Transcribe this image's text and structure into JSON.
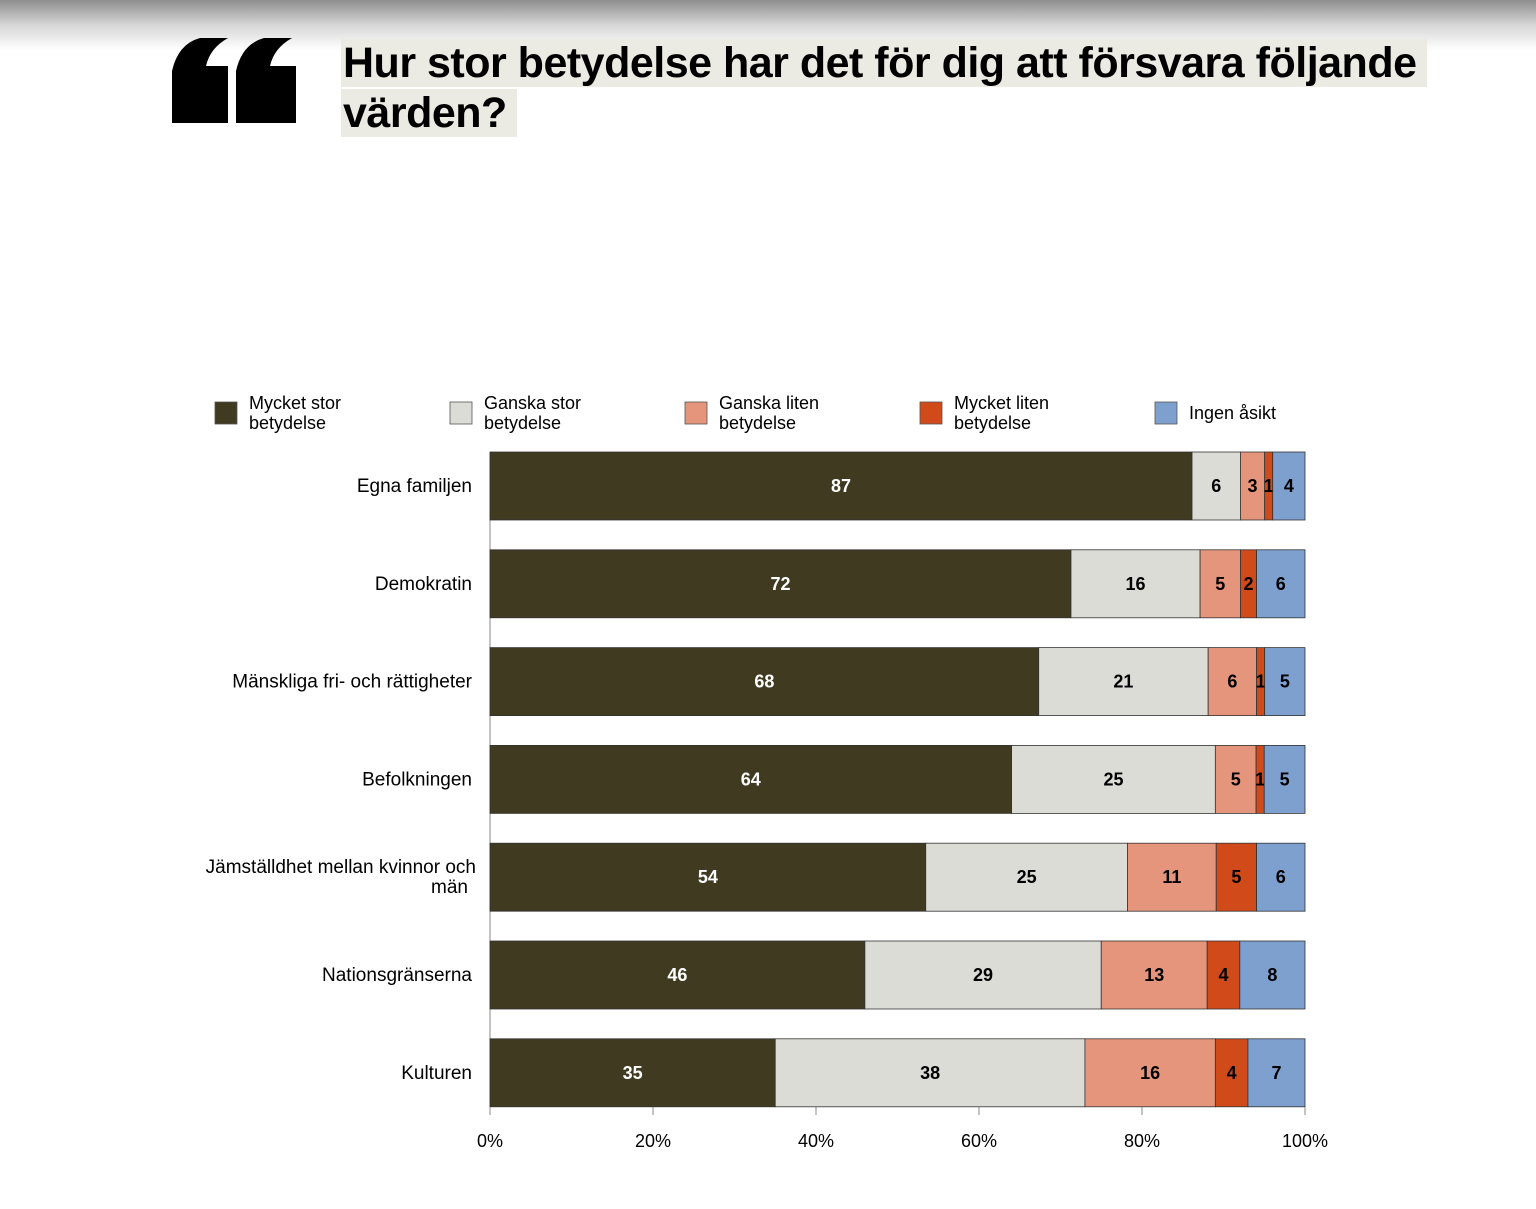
{
  "header": {
    "title": "Hur stor betydelse har det för dig att försvara följande värden?",
    "quote_icon": "quote-icon"
  },
  "chart_data": {
    "type": "bar",
    "orientation": "horizontal",
    "stacked": true,
    "categories": [
      "Egna familjen",
      "Demokratin",
      "Mänskliga fri- och rättigheter",
      "Befolkningen",
      "Jämställdhet mellan kvinnor och män",
      "Nationsgränserna",
      "Kulturen"
    ],
    "series": [
      {
        "name": "Mycket stor betydelse",
        "color": "#3f3a20",
        "label_color": "#ffffff",
        "values": [
          87,
          72,
          68,
          64,
          54,
          46,
          35
        ]
      },
      {
        "name": "Ganska stor betydelse",
        "color": "#dcdcd6",
        "label_color": "#000000",
        "values": [
          6,
          16,
          21,
          25,
          25,
          29,
          38
        ]
      },
      {
        "name": "Ganska liten betydelse",
        "color": "#e4957c",
        "label_color": "#000000",
        "values": [
          3,
          5,
          6,
          5,
          11,
          13,
          16
        ]
      },
      {
        "name": "Mycket liten betydelse",
        "color": "#d04a1a",
        "label_color": "#000000",
        "values": [
          1,
          2,
          1,
          1,
          5,
          4,
          4
        ]
      },
      {
        "name": "Ingen åsikt",
        "color": "#7ea0cf",
        "label_color": "#000000",
        "values": [
          4,
          6,
          5,
          5,
          6,
          8,
          7
        ]
      }
    ],
    "xlim": [
      0,
      100
    ],
    "xticks": [
      "0%",
      "20%",
      "40%",
      "60%",
      "80%",
      "100%"
    ],
    "legend_position": "top",
    "grid": false
  }
}
